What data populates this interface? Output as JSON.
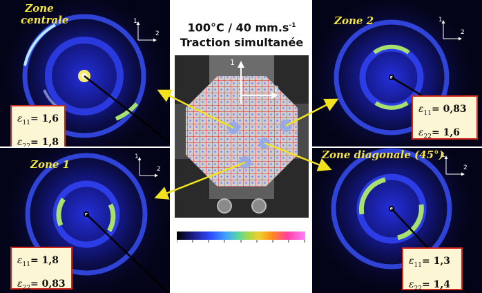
{
  "header": {
    "title_line1": "100°C / 40 mm.s",
    "title_line1_sup": "-1",
    "title_line2": "Traction simultanée"
  },
  "zones": {
    "central": {
      "label_line1": "Zone",
      "label_line2": "centrale",
      "e11_value": "1,6",
      "e22_value": "1,8"
    },
    "zone1": {
      "label": "Zone 1",
      "e11_value": "1,8",
      "e22_value": "0,83"
    },
    "zone2": {
      "label": "Zone 2",
      "e11_value": "0,83",
      "e22_value": "1,6"
    },
    "diagonal": {
      "label": "Zone diagonale (45°)",
      "e11_value": "1,3",
      "e22_value": "1,4"
    }
  },
  "axes": {
    "axis1": "1",
    "axis2": "2"
  },
  "strain_symbol": "ε",
  "sub_11": "11",
  "sub_22": "22",
  "colors": {
    "panel_background": "#040418",
    "ring_blue": "#2b3cff",
    "arc_green": "#a8e070",
    "label_yellow": "#f5e640",
    "box_border": "#d22a1e",
    "box_fill": "#fdf6d4",
    "arrow_yellow": "#f2e21e",
    "grid_red": "#e02020"
  }
}
